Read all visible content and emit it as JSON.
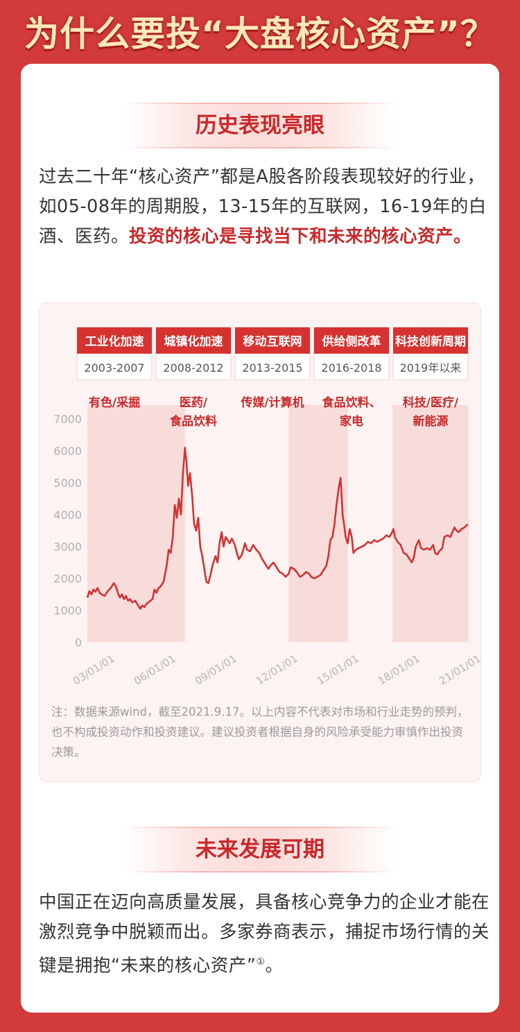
{
  "header": {
    "title": "为什么要投“大盘核心资产”？"
  },
  "section1": {
    "heading": "历史表现亮眼",
    "text_plain": "过去二十年“核心资产”都是A股各阶段表现较好的行业，如05-08年的周期股，13-15年的互联网，16-19年的白酒、医药。",
    "text_highlight": "投资的核心是寻找当下和未来的核心资产。"
  },
  "section2": {
    "heading": "未来发展可期",
    "text": "中国正在迈向高质量发展，具备核心竞争力的企业才能在激烈竞争中脱颖而出。多家券商表示，捕捉市场行情的关键是拥抱“未来的核心资产”",
    "footnote_mark": "①",
    "tail": "。"
  },
  "chart_note": "注：数据来源wind，截至2021.9.17。以上内容不代表对市场和行业走势的预判，也不构成投资动作和投资建议。建议投资者根据自身的风险承受能力审慎作出投资决策。",
  "colors": {
    "accent": "#c8282a",
    "line": "#d23232",
    "band": "#f8dcda",
    "tag_header": "#d6322f",
    "background": "#d23a3b"
  },
  "chart_data": {
    "type": "line",
    "xlabel": "",
    "ylabel": "",
    "ylim": [
      0,
      7000
    ],
    "yticks": [
      0,
      1000,
      2000,
      3000,
      4000,
      5000,
      6000,
      7000
    ],
    "xticks": [
      "03/01/01",
      "06/01/01",
      "09/01/01",
      "12/01/01",
      "15/01/01",
      "18/01/01",
      "21/01/01"
    ],
    "xrange": [
      2003.0,
      2021.75
    ],
    "grid": false,
    "periods": [
      {
        "name": "工业化加速",
        "range": "2003-2007",
        "sectors": [
          "有色/采掘"
        ],
        "start": 2003.0,
        "end": 2007.8,
        "shaded": true
      },
      {
        "name": "城镇化加速",
        "range": "2008-2012",
        "sectors": [
          "医药/",
          "食品饮料"
        ],
        "start": 2007.8,
        "end": 2012.9,
        "shaded": false
      },
      {
        "name": "移动互联网",
        "range": "2013-2015",
        "sectors": [
          "传媒/计算机"
        ],
        "start": 2012.9,
        "end": 2015.8,
        "shaded": true
      },
      {
        "name": "供给侧改革",
        "range": "2016-2018",
        "sectors": [
          "食品饮料、",
          "家电"
        ],
        "start": 2015.8,
        "end": 2018.0,
        "shaded": false
      },
      {
        "name": "科技创新周期",
        "range": "2019年以来",
        "sectors": [
          "科技/医疗/",
          "新能源"
        ],
        "start": 2018.0,
        "end": 2021.75,
        "shaded": true
      }
    ],
    "series": [
      {
        "name": "",
        "points": [
          [
            2003.0,
            1400
          ],
          [
            2003.1,
            1600
          ],
          [
            2003.2,
            1500
          ],
          [
            2003.3,
            1650
          ],
          [
            2003.4,
            1580
          ],
          [
            2003.5,
            1700
          ],
          [
            2003.6,
            1550
          ],
          [
            2003.7,
            1500
          ],
          [
            2003.85,
            1450
          ],
          [
            2004.0,
            1600
          ],
          [
            2004.15,
            1700
          ],
          [
            2004.3,
            1850
          ],
          [
            2004.4,
            1750
          ],
          [
            2004.5,
            1550
          ],
          [
            2004.6,
            1400
          ],
          [
            2004.7,
            1500
          ],
          [
            2004.8,
            1350
          ],
          [
            2004.9,
            1450
          ],
          [
            2005.0,
            1300
          ],
          [
            2005.1,
            1350
          ],
          [
            2005.2,
            1250
          ],
          [
            2005.35,
            1300
          ],
          [
            2005.5,
            1150
          ],
          [
            2005.6,
            1050
          ],
          [
            2005.7,
            1150
          ],
          [
            2005.8,
            1100
          ],
          [
            2005.9,
            1200
          ],
          [
            2006.0,
            1250
          ],
          [
            2006.1,
            1300
          ],
          [
            2006.2,
            1350
          ],
          [
            2006.3,
            1650
          ],
          [
            2006.4,
            1550
          ],
          [
            2006.5,
            1700
          ],
          [
            2006.6,
            1750
          ],
          [
            2006.75,
            1900
          ],
          [
            2006.9,
            2400
          ],
          [
            2007.0,
            2900
          ],
          [
            2007.1,
            2800
          ],
          [
            2007.2,
            3300
          ],
          [
            2007.3,
            4300
          ],
          [
            2007.4,
            3900
          ],
          [
            2007.5,
            4500
          ],
          [
            2007.6,
            4000
          ],
          [
            2007.7,
            5300
          ],
          [
            2007.8,
            6100
          ],
          [
            2007.88,
            5600
          ],
          [
            2007.95,
            4900
          ],
          [
            2008.05,
            5300
          ],
          [
            2008.15,
            4600
          ],
          [
            2008.25,
            3700
          ],
          [
            2008.35,
            3500
          ],
          [
            2008.45,
            3900
          ],
          [
            2008.55,
            3000
          ],
          [
            2008.65,
            2700
          ],
          [
            2008.75,
            2300
          ],
          [
            2008.85,
            1900
          ],
          [
            2008.95,
            1850
          ],
          [
            2009.05,
            2100
          ],
          [
            2009.15,
            2400
          ],
          [
            2009.3,
            2700
          ],
          [
            2009.4,
            2500
          ],
          [
            2009.5,
            3100
          ],
          [
            2009.6,
            3450
          ],
          [
            2009.7,
            3000
          ],
          [
            2009.8,
            3300
          ],
          [
            2009.9,
            3200
          ],
          [
            2010.0,
            3100
          ],
          [
            2010.1,
            3250
          ],
          [
            2010.25,
            3050
          ],
          [
            2010.35,
            2800
          ],
          [
            2010.45,
            2600
          ],
          [
            2010.6,
            2750
          ],
          [
            2010.75,
            3100
          ],
          [
            2010.85,
            2900
          ],
          [
            2011.0,
            2850
          ],
          [
            2011.15,
            3050
          ],
          [
            2011.3,
            2900
          ],
          [
            2011.45,
            2800
          ],
          [
            2011.6,
            2600
          ],
          [
            2011.75,
            2450
          ],
          [
            2011.9,
            2300
          ],
          [
            2012.0,
            2400
          ],
          [
            2012.15,
            2500
          ],
          [
            2012.3,
            2350
          ],
          [
            2012.45,
            2200
          ],
          [
            2012.6,
            2150
          ],
          [
            2012.75,
            2050
          ],
          [
            2012.9,
            2150
          ],
          [
            2013.0,
            2350
          ],
          [
            2013.15,
            2300
          ],
          [
            2013.3,
            2200
          ],
          [
            2013.45,
            2050
          ],
          [
            2013.6,
            2100
          ],
          [
            2013.75,
            2200
          ],
          [
            2013.9,
            2150
          ],
          [
            2014.0,
            2050
          ],
          [
            2014.15,
            2000
          ],
          [
            2014.3,
            2050
          ],
          [
            2014.45,
            2100
          ],
          [
            2014.6,
            2250
          ],
          [
            2014.75,
            2400
          ],
          [
            2014.85,
            2700
          ],
          [
            2014.95,
            3200
          ],
          [
            2015.05,
            3300
          ],
          [
            2015.15,
            3700
          ],
          [
            2015.25,
            4300
          ],
          [
            2015.35,
            4800
          ],
          [
            2015.45,
            5150
          ],
          [
            2015.5,
            4600
          ],
          [
            2015.55,
            4000
          ],
          [
            2015.62,
            3700
          ],
          [
            2015.7,
            3300
          ],
          [
            2015.8,
            3100
          ],
          [
            2015.9,
            3550
          ],
          [
            2016.0,
            3300
          ],
          [
            2016.08,
            2800
          ],
          [
            2016.2,
            2900
          ],
          [
            2016.35,
            2950
          ],
          [
            2016.5,
            3000
          ],
          [
            2016.65,
            3050
          ],
          [
            2016.8,
            3150
          ],
          [
            2016.95,
            3100
          ],
          [
            2017.1,
            3200
          ],
          [
            2017.25,
            3150
          ],
          [
            2017.4,
            3200
          ],
          [
            2017.55,
            3250
          ],
          [
            2017.7,
            3350
          ],
          [
            2017.85,
            3300
          ],
          [
            2017.95,
            3400
          ],
          [
            2018.05,
            3550
          ],
          [
            2018.12,
            3300
          ],
          [
            2018.25,
            3150
          ],
          [
            2018.4,
            3050
          ],
          [
            2018.55,
            2800
          ],
          [
            2018.7,
            2750
          ],
          [
            2018.85,
            2600
          ],
          [
            2018.95,
            2500
          ],
          [
            2019.05,
            2650
          ],
          [
            2019.15,
            3000
          ],
          [
            2019.3,
            3200
          ],
          [
            2019.4,
            2950
          ],
          [
            2019.55,
            2900
          ],
          [
            2019.7,
            2950
          ],
          [
            2019.85,
            2900
          ],
          [
            2020.0,
            3050
          ],
          [
            2020.1,
            2800
          ],
          [
            2020.2,
            2750
          ],
          [
            2020.3,
            2850
          ],
          [
            2020.45,
            2950
          ],
          [
            2020.55,
            3300
          ],
          [
            2020.7,
            3350
          ],
          [
            2020.85,
            3300
          ],
          [
            2020.95,
            3450
          ],
          [
            2021.05,
            3600
          ],
          [
            2021.15,
            3500
          ],
          [
            2021.25,
            3450
          ],
          [
            2021.4,
            3550
          ],
          [
            2021.55,
            3600
          ],
          [
            2021.7,
            3700
          ]
        ]
      }
    ]
  }
}
